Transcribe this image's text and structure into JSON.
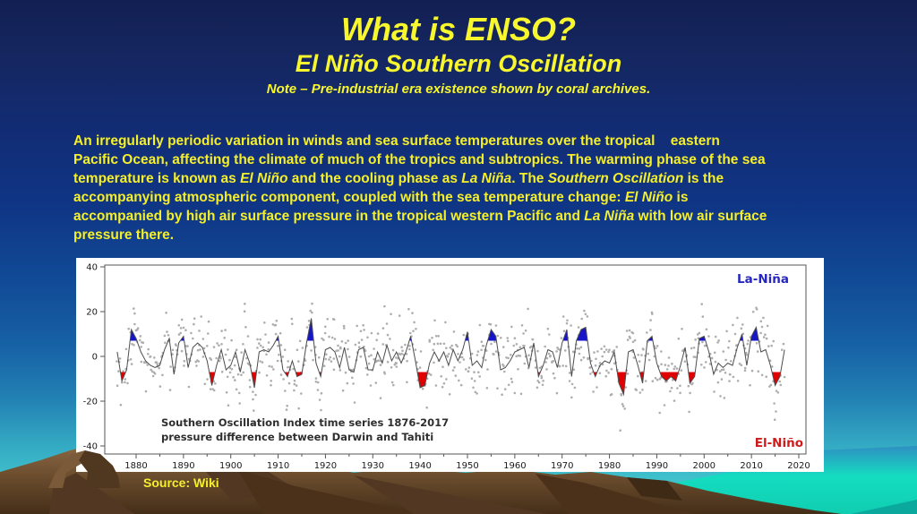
{
  "header": {
    "title": "What is ENSO?",
    "subtitle": "El Niño Southern Oscillation",
    "note": "Note – Pre-industrial era existence shown by coral archives."
  },
  "body": {
    "lines": [
      [
        {
          "t": "An irregularly periodic variation in winds and sea surface temperatures over the tropical    eastern"
        }
      ],
      [
        {
          "t": "Pacific Ocean, affecting the climate of much of the tropics and subtropics. The warming phase of the sea"
        }
      ],
      [
        {
          "t": "temperature is known as "
        },
        {
          "t": "El Niño",
          "i": true
        },
        {
          "t": " and the cooling phase as "
        },
        {
          "t": "La Niña",
          "i": true
        },
        {
          "t": ". The "
        },
        {
          "t": "Southern Oscillation",
          "i": true
        },
        {
          "t": " is the"
        }
      ],
      [
        {
          "t": "accompanying atmospheric component, coupled with the sea temperature change: "
        },
        {
          "t": "El Niño",
          "i": true
        },
        {
          "t": " is"
        }
      ],
      [
        {
          "t": "accompanied by high air surface pressure in the tropical western Pacific and "
        },
        {
          "t": "La Niña",
          "i": true
        },
        {
          "t": " with low air surface"
        }
      ],
      [
        {
          "t": "pressure there."
        }
      ]
    ]
  },
  "source_label": "Source: Wiki",
  "palette": {
    "slide_text_yellow": "#f5ef2a",
    "la_nina_blue": "#2626c0",
    "el_nino_red": "#cf1b1b",
    "fill_blue": "#1616c8",
    "fill_red": "#e00000",
    "scatter_gray": "#9a9a9a",
    "line_gray": "#4d4d4d"
  },
  "chart_data": {
    "type": "line",
    "title": "Southern Oscillation Index time series 1876-2017",
    "subtitle": "pressure difference between Darwin and Tahiti",
    "label_la_nina": "La-Niña",
    "label_el_nino": "El-Niño",
    "x_ticks": [
      1880,
      1890,
      1900,
      1910,
      1920,
      1930,
      1940,
      1950,
      1960,
      1970,
      1980,
      1990,
      2000,
      2010,
      2020
    ],
    "y_ticks": [
      40,
      20,
      0,
      -20,
      -40
    ],
    "xlim": [
      1873,
      2022
    ],
    "ylim": [
      -44,
      42
    ],
    "event_fill_threshold": 7,
    "grid": false,
    "start_year": 1876,
    "values": [
      2,
      -11,
      -6,
      12,
      8,
      2,
      -2,
      -4,
      -5,
      -4,
      3,
      8,
      -8,
      6,
      9,
      -5,
      4,
      6,
      4,
      -2,
      -13,
      -4,
      3,
      -6,
      -4,
      2,
      -7,
      3,
      -3,
      -14,
      2,
      3,
      2,
      5,
      9,
      -6,
      -9,
      -2,
      -9,
      -8,
      6,
      17,
      -3,
      -9,
      3,
      4,
      2,
      -5,
      4,
      -6,
      -7,
      3,
      4,
      -6,
      -6,
      2,
      -3,
      5,
      -2,
      2,
      -3,
      2,
      9,
      -2,
      -14,
      -13,
      -3,
      2,
      -2,
      2,
      -4,
      3,
      -2,
      3,
      11,
      -4,
      -2,
      -5,
      5,
      12,
      9,
      -6,
      -5,
      -2,
      2,
      3,
      4,
      -5,
      6,
      -9,
      -4,
      3,
      2,
      -5,
      6,
      12,
      -9,
      7,
      12,
      13,
      -3,
      -9,
      -4,
      -2,
      -3,
      2,
      -12,
      -17,
      2,
      3,
      -4,
      -12,
      7,
      9,
      -3,
      -9,
      -11,
      -9,
      -11,
      -4,
      4,
      -12,
      -9,
      8,
      9,
      2,
      -8,
      -3,
      -5,
      -3,
      -4,
      4,
      10,
      -4,
      9,
      13,
      2,
      3,
      -4,
      -13,
      -9,
      3
    ]
  }
}
